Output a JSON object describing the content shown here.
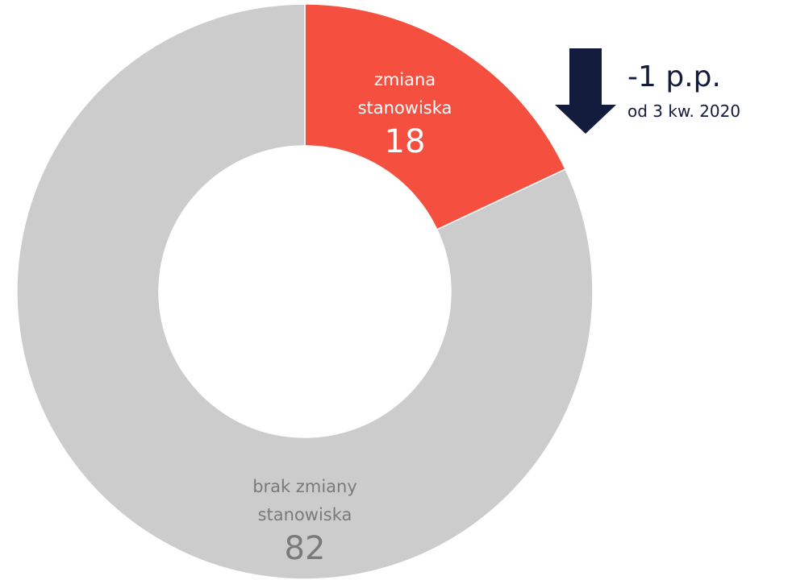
{
  "chart_data": {
    "type": "pie",
    "donut": true,
    "categories": [
      "zmiana stanowiska",
      "brak zmiany stanowiska"
    ],
    "values": [
      18,
      82
    ],
    "colors": [
      "#f44f3f",
      "#cccccc"
    ],
    "annotations": [
      "-1 p.p.",
      "od 3 kw. 2020"
    ]
  }
}
